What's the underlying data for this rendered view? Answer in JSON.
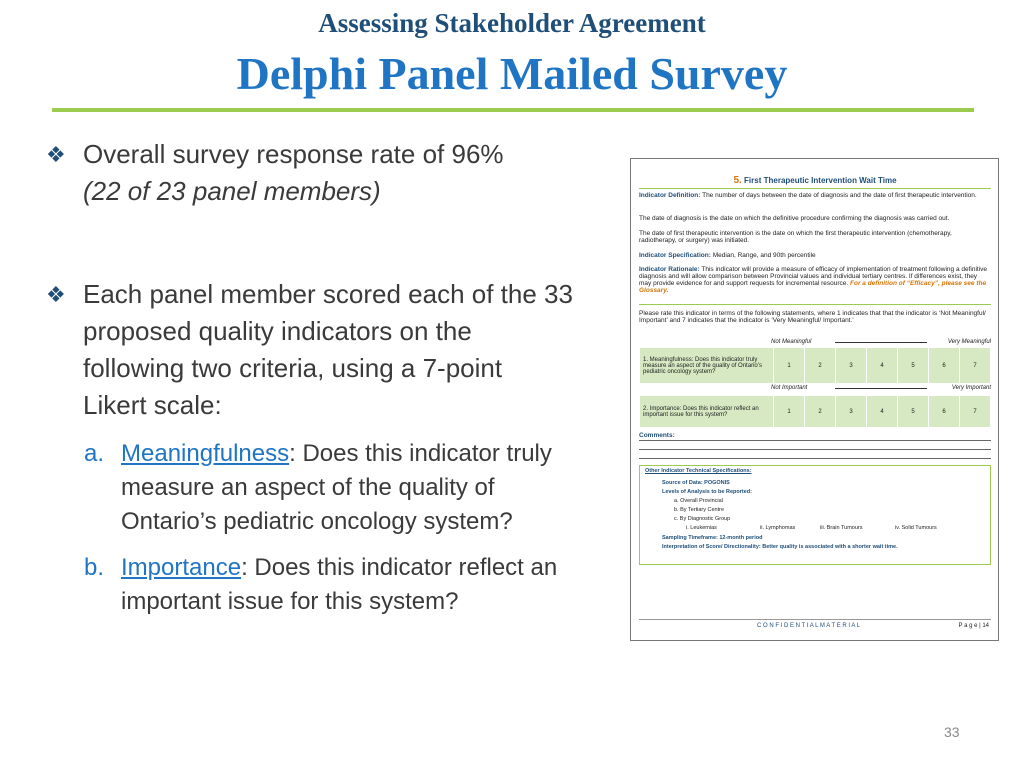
{
  "header": {
    "subtitle": "Assessing Stakeholder Agreement",
    "title": "Delphi Panel Mailed Survey"
  },
  "bullets": [
    {
      "line1": "Overall survey response rate of 96%",
      "line2": "(22 of 23 panel members)"
    },
    {
      "lines": [
        "Each panel member scored each of the 33",
        "proposed quality indicators on the",
        "following  two criteria, using a 7-point",
        "Likert scale:"
      ]
    }
  ],
  "sub_items": [
    {
      "label": "a.",
      "term": "Meaningfulness",
      "rest1": ": Does this indicator truly",
      "lines": [
        "measure an aspect of the quality of",
        "Ontario’s pediatric oncology system?"
      ]
    },
    {
      "label": "b.",
      "term": "Importance",
      "rest1": ": Does this indicator reflect an",
      "lines": [
        "important issue for this system?"
      ]
    }
  ],
  "document": {
    "number": "5.",
    "heading": "First Therapeutic Intervention Wait Time",
    "def_label": "Indicator Definition:",
    "def_text": "The number of days between the date of diagnosis and the date of first therapeutic intervention.",
    "p1": "The date of diagnosis is the date on which the definitive procedure confirming the diagnosis was carried out.",
    "p2": "The date of first therapeutic intervention is the date on which the first therapeutic intervention (chemotherapy, radiotherapy, or surgery) was initiated.",
    "spec_label": "Indicator Specification:",
    "spec_text": "Median, Range, and 90th percentile",
    "rat_label": "Indicator Rationale:",
    "rat_text": "This indicator will provide a measure of efficacy of implementation of treatment following a definitive diagnosis and will allow comparison between Provincial values and individual tertiary centres. If differences exist, they may provide evidence for and support requests for incremental resource.",
    "rat_link": "For a definition of “Efficacy”, please see the Glossary.",
    "instructions": "Please rate this indicator in terms of the following statements, where 1 indicates that that the indicator is ‘Not Meaningful/ Important’ and 7 indicates that the indicator is ‘Very Meaningful/ Important.’",
    "scale1_left": "Not Meaningful",
    "scale1_right": "Very Meaningful",
    "q1": "1.  Meaningfulness: Does this indicator truly measure an aspect of the quality of Ontario’s pediatric oncology system?",
    "scale2_left": "Not Important",
    "scale2_right": "Very Important",
    "q2": "2.  Importance: Does this indicator reflect an important issue for this system?",
    "ratings": [
      "1",
      "2",
      "3",
      "4",
      "5",
      "6",
      "7"
    ],
    "comments": "Comments:",
    "other_title": "Other Indicator Technical Specifications:",
    "source": "Source of Data:  POGONIS",
    "levels": "Levels of Analysis to be Reported:",
    "level_a": "a.   Overall Provincial",
    "level_b": "b.   By Tertiary Centre",
    "level_c": "c.   By Diagnostic Group",
    "dx1": "i.     Leukemias",
    "dx2": "ii.  Lymphomas",
    "dx3": "iii.  Brain Tumours",
    "dx4": "iv.  Solid Tumours",
    "timeframe": "Sampling Timeframe:  12-month period",
    "interp": "Interpretation of Score/ Directionality:  Better quality is associated with a shorter wait time.",
    "footer_conf": "C O N F I D E N T I A L   M A T E R I A L",
    "footer_page": "P a g e  | 14"
  },
  "slide_number": "33",
  "colors": {
    "title": "#1f75c4",
    "subtitle": "#1f4e79",
    "rule": "#9bcc4e",
    "accent_orange": "#d4760a"
  }
}
